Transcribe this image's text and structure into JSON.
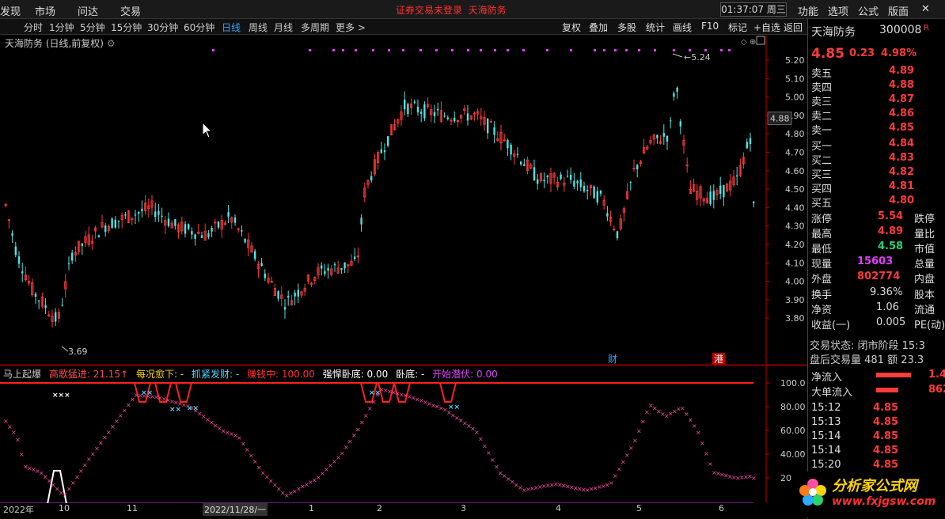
{
  "menubar": {
    "items": [
      "发现",
      "市场",
      "问达",
      "交易"
    ],
    "notice": "证券交易未登录",
    "stock_short": "天海防务",
    "clock": "01:37:07 周三",
    "right_items": [
      "功能",
      "选项",
      "公式",
      "版面"
    ],
    "close": "✕"
  },
  "timeframes": [
    "分时",
    "1分钟",
    "5分钟",
    "15分钟",
    "30分钟",
    "60分钟",
    "日线",
    "周线",
    "月线",
    "多周期",
    "更多 >"
  ],
  "active_timeframe": "日线",
  "tools": [
    "复权",
    "叠加",
    "多股",
    "统计",
    "画线",
    "F10",
    "标记",
    "+自选",
    "返回"
  ],
  "chart_title": "天海防务 (日线,前复权)",
  "price_axis": [
    "5.20",
    "5.10",
    "5.00",
    "4.90",
    "4.80",
    "4.70",
    "4.60",
    "4.50",
    "4.40",
    "4.30",
    "4.20",
    "4.10",
    "4.00",
    "3.90",
    "3.80"
  ],
  "current_price_tag": "4.88",
  "annotations": {
    "high": "5.24",
    "low": "3.69",
    "cai": "财",
    "gang": "港"
  },
  "indicator": {
    "name": "马上起爆",
    "items": [
      {
        "label": "高歌猛进: 21.15↑",
        "color": "#ff4d4d"
      },
      {
        "label": "每况愈下: -",
        "color": "#ffd700"
      },
      {
        "label": "抓紧发财: -",
        "color": "#4fd6ff"
      },
      {
        "label": "赚钱中: 100.00",
        "color": "#ff3030"
      },
      {
        "label": "强悍卧底: 0.00",
        "color": "#ffffff"
      },
      {
        "label": "卧底: -",
        "color": "#ffffff"
      },
      {
        "label": "开始潜伏: 0.00",
        "color": "#e040fb"
      }
    ],
    "axis": [
      "100.0",
      "80.00",
      "60.00",
      "40.00",
      "20.00"
    ]
  },
  "dates": [
    "2022年",
    "10",
    "11",
    "2022/11/28/一",
    "1",
    "2",
    "3",
    "4",
    "5",
    "6"
  ],
  "side": {
    "name": "天海防务",
    "code": "300008",
    "r": "R",
    "price": "4.85",
    "change": "0.23",
    "pct": "4.98%",
    "asks": [
      {
        "l": "卖五",
        "p": "4.89"
      },
      {
        "l": "卖四",
        "p": "4.88"
      },
      {
        "l": "卖三",
        "p": "4.87"
      },
      {
        "l": "卖二",
        "p": "4.86"
      },
      {
        "l": "卖一",
        "p": "4.85"
      }
    ],
    "bids": [
      {
        "l": "买一",
        "p": "4.84"
      },
      {
        "l": "买二",
        "p": "4.83"
      },
      {
        "l": "买三",
        "p": "4.82"
      },
      {
        "l": "买四",
        "p": "4.81"
      },
      {
        "l": "买五",
        "p": "4.80"
      }
    ],
    "stats": [
      {
        "l": "涨停",
        "v": "5.54",
        "r": "跌停",
        "c": "red"
      },
      {
        "l": "最高",
        "v": "4.89",
        "r": "量比",
        "c": "red"
      },
      {
        "l": "最低",
        "v": "4.58",
        "r": "市值",
        "c": "grn"
      },
      {
        "l": "现量",
        "v": "15603",
        "r": "总量",
        "c": "mag"
      },
      {
        "l": "外盘",
        "v": "802774",
        "r": "内盘",
        "c": "red"
      }
    ],
    "stats2": [
      {
        "l": "换手",
        "v": "9.36%",
        "r": "股本"
      },
      {
        "l": "净资",
        "v": "1.06",
        "r": "流通"
      },
      {
        "l": "收益(一)",
        "v": "0.005",
        "r": "PE(动)"
      }
    ],
    "trade_state": "交易状态: 闭市阶段 15:3",
    "after": "盘后交易量 481 额 23.3",
    "flow": [
      {
        "l": "净流入",
        "v": "1.4"
      },
      {
        "l": "大单流入",
        "v": "862"
      }
    ],
    "ticks": [
      {
        "t": "15:12",
        "p": "4.85"
      },
      {
        "t": "15:13",
        "p": "4.85"
      },
      {
        "t": "15:14",
        "p": "4.85"
      },
      {
        "t": "15:14",
        "p": "4.85"
      },
      {
        "t": "15:20",
        "p": "4.85"
      }
    ],
    "logo": "分析家公式网",
    "logo_url": "www.fxjgsw.com"
  },
  "colors": {
    "up": "#ff3b3b",
    "down": "#4fe3e3",
    "magenta": "#e040fb"
  }
}
